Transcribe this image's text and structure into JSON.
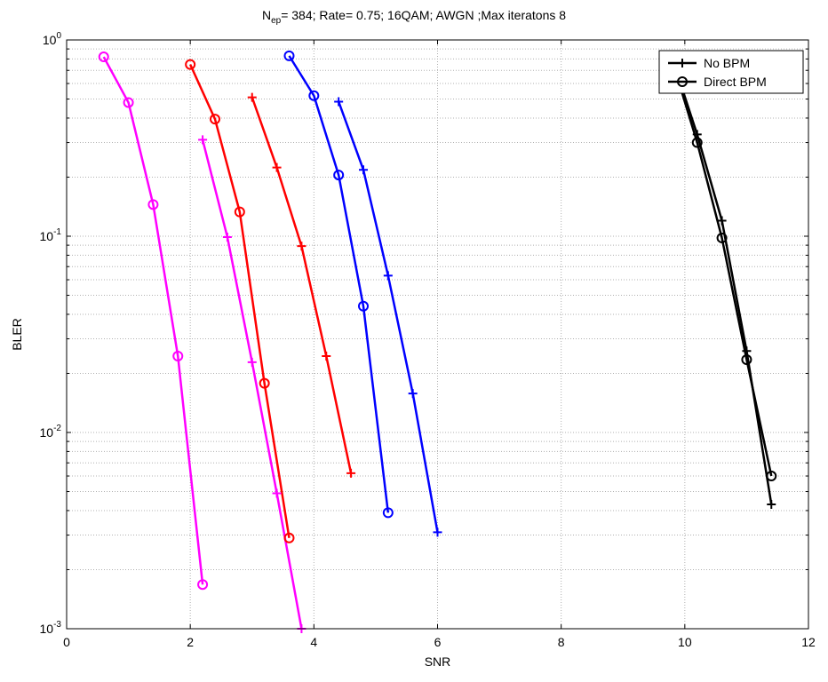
{
  "chart_data": {
    "type": "line",
    "title": {
      "prefix": "N",
      "subscript": "ep",
      "rest": "= 384;  Rate= 0.75;  16QAM; AWGN ;Max iteratons 8"
    },
    "xlabel": "SNR",
    "ylabel": "BLER",
    "xlim": [
      0,
      12
    ],
    "ylim": [
      0.001,
      1
    ],
    "yscale": "log",
    "grid": true,
    "xticks": [
      0,
      2,
      4,
      6,
      8,
      10,
      12
    ],
    "xtick_labels": [
      "0",
      "2",
      "4",
      "6",
      "8",
      "10",
      "12"
    ],
    "yticks": [
      {
        "value": 0.001,
        "base": "10",
        "exp": "-3"
      },
      {
        "value": 0.01,
        "base": "10",
        "exp": "-2"
      },
      {
        "value": 0.1,
        "base": "10",
        "exp": "-1"
      },
      {
        "value": 1,
        "base": "10",
        "exp": "0"
      }
    ],
    "legend": {
      "placement": "top-right",
      "entries": [
        {
          "label": "No BPM",
          "marker": "plus",
          "color": "#000000"
        },
        {
          "label": "Direct BPM",
          "marker": "circle",
          "color": "#000000"
        }
      ]
    },
    "series": [
      {
        "color": "#ff00ff",
        "marker": "circle",
        "x": [
          0.6,
          1.0,
          1.4,
          1.8,
          2.2
        ],
        "y": [
          0.82,
          0.48,
          0.145,
          0.0245,
          0.00168
        ]
      },
      {
        "color": "#ff00ff",
        "marker": "plus",
        "x": [
          2.2,
          2.6,
          3.0,
          3.4,
          3.8
        ],
        "y": [
          0.31,
          0.099,
          0.0228,
          0.0049,
          0.001
        ]
      },
      {
        "color": "#ff0000",
        "marker": "circle",
        "x": [
          2.0,
          2.4,
          2.8,
          3.2,
          3.6
        ],
        "y": [
          0.75,
          0.395,
          0.133,
          0.0178,
          0.0029
        ]
      },
      {
        "color": "#ff0000",
        "marker": "plus",
        "x": [
          3.0,
          3.4,
          3.8,
          4.2,
          4.6
        ],
        "y": [
          0.51,
          0.224,
          0.089,
          0.0245,
          0.0062
        ]
      },
      {
        "color": "#0000ff",
        "marker": "circle",
        "x": [
          3.6,
          4.0,
          4.4,
          4.8,
          5.2
        ],
        "y": [
          0.83,
          0.52,
          0.205,
          0.044,
          0.0039
        ]
      },
      {
        "color": "#0000ff",
        "marker": "plus",
        "x": [
          4.4,
          4.8,
          5.2,
          5.6,
          6.0
        ],
        "y": [
          0.485,
          0.218,
          0.063,
          0.0158,
          0.0031
        ]
      },
      {
        "color": "#000000",
        "marker": "circle",
        "x": [
          9.8,
          10.2,
          10.6,
          11.0,
          11.4
        ],
        "y": [
          0.78,
          0.3,
          0.098,
          0.0235,
          0.006
        ]
      },
      {
        "color": "#000000",
        "marker": "plus",
        "x": [
          9.8,
          10.2,
          10.6,
          11.0,
          11.4
        ],
        "y": [
          0.8,
          0.33,
          0.12,
          0.026,
          0.0043
        ]
      }
    ]
  }
}
